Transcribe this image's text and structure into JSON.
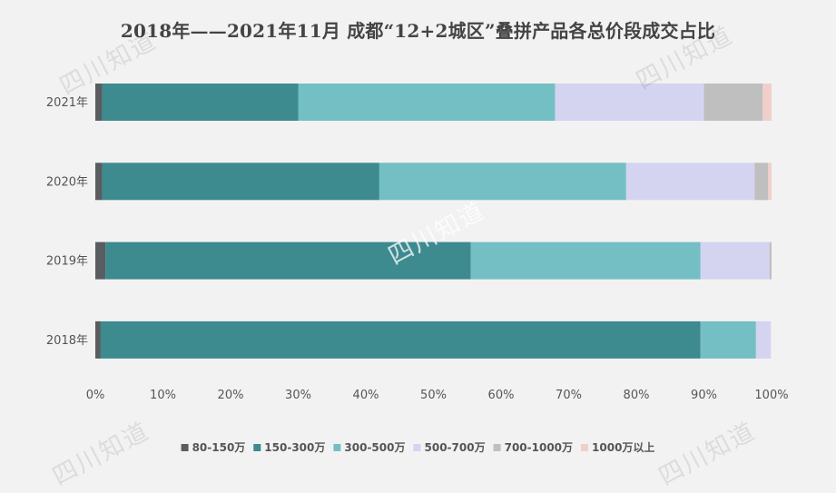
{
  "chart_data": {
    "type": "bar",
    "orientation": "horizontal",
    "stacked": true,
    "percent": true,
    "title": "2018年——2021年11月 成都“12+2城区”叠拼产品各总价段成交占比",
    "categories": [
      "2021年",
      "2020年",
      "2019年",
      "2018年"
    ],
    "series": [
      {
        "name": "80-150万",
        "color": "#595d61",
        "values": [
          1.0,
          1.0,
          1.5,
          0.8
        ]
      },
      {
        "name": "150-300万",
        "color": "#3d8a8f",
        "values": [
          29.0,
          41.0,
          54.0,
          88.7
        ]
      },
      {
        "name": "300-500万",
        "color": "#74bfc4",
        "values": [
          38.0,
          36.5,
          34.0,
          8.2
        ]
      },
      {
        "name": "500-700万",
        "color": "#d4d4f0",
        "values": [
          22.0,
          19.0,
          10.2,
          2.2
        ]
      },
      {
        "name": "700-1000万",
        "color": "#bfbfbf",
        "values": [
          8.7,
          2.0,
          0.3,
          0
        ]
      },
      {
        "name": "1000万以上",
        "color": "#f0cfcb",
        "values": [
          1.3,
          0.5,
          0,
          0
        ]
      }
    ],
    "x_ticks": [
      "0%",
      "10%",
      "20%",
      "30%",
      "40%",
      "50%",
      "60%",
      "70%",
      "80%",
      "90%",
      "100%"
    ],
    "xlim": [
      0,
      100
    ],
    "grid": false,
    "legend_position": "bottom"
  },
  "watermark_text": "四川知道"
}
